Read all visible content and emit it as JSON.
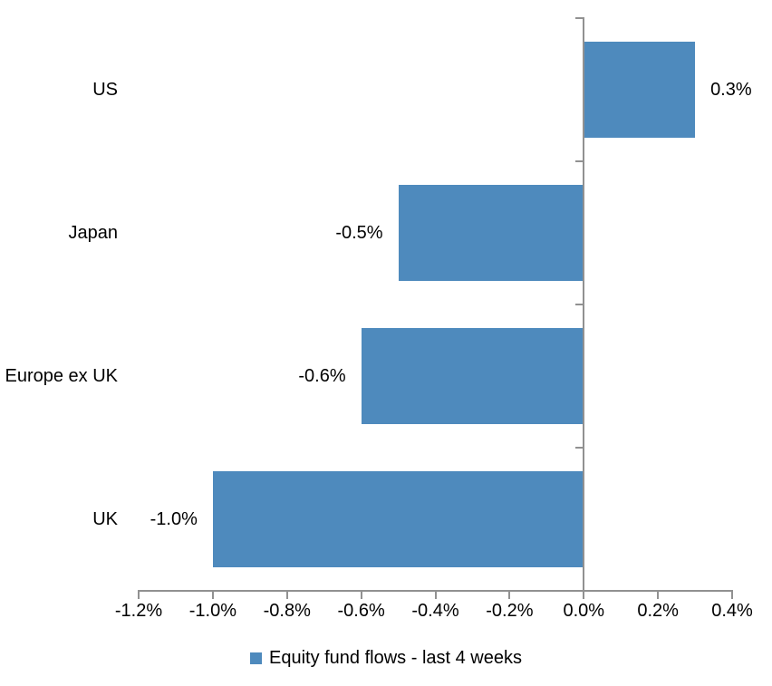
{
  "chart_data": {
    "type": "bar",
    "orientation": "horizontal",
    "title": "",
    "categories": [
      "US",
      "Japan",
      "Europe ex UK",
      "UK"
    ],
    "series": [
      {
        "name": "Equity fund flows - last 4 weeks",
        "values": [
          0.3,
          -0.5,
          -0.6,
          -1.0
        ],
        "data_labels": [
          "0.3%",
          "-0.5%",
          "-0.6%",
          "-1.0%"
        ]
      }
    ],
    "x_axis": {
      "min": -1.2,
      "max": 0.4,
      "tick_values": [
        -1.2,
        -1.0,
        -0.8,
        -0.6,
        -0.4,
        -0.2,
        0.0,
        0.2,
        0.4
      ],
      "tick_labels": [
        "-1.2%",
        "-1.0%",
        "-0.8%",
        "-0.6%",
        "-0.4%",
        "-0.2%",
        "0.0%",
        "0.2%",
        "0.4%"
      ]
    },
    "legend": {
      "position": "bottom",
      "entries": [
        "Equity fund flows - last 4 weeks"
      ]
    },
    "grid": "off",
    "colors": {
      "bar": "#4E8ABD",
      "axis": "#919191",
      "text": "#000000",
      "background": "#FFFFFF"
    }
  }
}
